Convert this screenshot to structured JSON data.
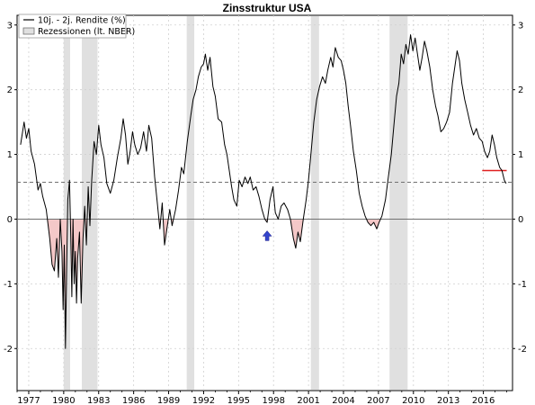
{
  "chart_data": {
    "type": "line",
    "title": "Zinsstruktur USA",
    "xlabel": "",
    "ylabel": "",
    "xlim": [
      1976.0,
      2018.5
    ],
    "ylim": [
      -2.65,
      3.15
    ],
    "x_ticks": [
      1977,
      1980,
      1983,
      1986,
      1989,
      1992,
      1995,
      1998,
      2001,
      2004,
      2007,
      2010,
      2013,
      2016
    ],
    "y_ticks": [
      -2,
      -1,
      0,
      1,
      2,
      3
    ],
    "grid": true,
    "axes_right_labels": true,
    "legend_position": "top-left",
    "legend": [
      {
        "label": "10j. - 2j. Rendite (%)",
        "kind": "line",
        "color": "#000000"
      },
      {
        "label": "Rezessionen (lt. NBER)",
        "kind": "box",
        "color": "#e0e0e0"
      }
    ],
    "series": [
      {
        "name": "10j. - 2j. Rendite (%)",
        "color": "#000000",
        "points": [
          [
            1976.3,
            1.15
          ],
          [
            1976.6,
            1.5
          ],
          [
            1976.8,
            1.25
          ],
          [
            1977.0,
            1.4
          ],
          [
            1977.2,
            1.05
          ],
          [
            1977.5,
            0.85
          ],
          [
            1977.8,
            0.45
          ],
          [
            1978.0,
            0.55
          ],
          [
            1978.2,
            0.35
          ],
          [
            1978.5,
            0.15
          ],
          [
            1978.8,
            -0.3
          ],
          [
            1979.0,
            -0.7
          ],
          [
            1979.2,
            -0.8
          ],
          [
            1979.4,
            -0.3
          ],
          [
            1979.55,
            -0.9
          ],
          [
            1979.7,
            0.0
          ],
          [
            1979.85,
            -0.5
          ],
          [
            1979.95,
            -1.4
          ],
          [
            1980.05,
            -0.4
          ],
          [
            1980.15,
            -2.0
          ],
          [
            1980.25,
            -0.8
          ],
          [
            1980.35,
            0.3
          ],
          [
            1980.5,
            0.6
          ],
          [
            1980.6,
            -0.2
          ],
          [
            1980.7,
            -1.2
          ],
          [
            1980.8,
            0.0
          ],
          [
            1980.9,
            -1.0
          ],
          [
            1981.0,
            -0.5
          ],
          [
            1981.1,
            -1.3
          ],
          [
            1981.2,
            -0.6
          ],
          [
            1981.35,
            -0.2
          ],
          [
            1981.5,
            -1.3
          ],
          [
            1981.65,
            -0.3
          ],
          [
            1981.8,
            0.2
          ],
          [
            1981.95,
            -0.4
          ],
          [
            1982.1,
            0.5
          ],
          [
            1982.25,
            -0.1
          ],
          [
            1982.4,
            0.6
          ],
          [
            1982.6,
            1.2
          ],
          [
            1982.8,
            1.0
          ],
          [
            1983.0,
            1.45
          ],
          [
            1983.2,
            1.15
          ],
          [
            1983.45,
            0.95
          ],
          [
            1983.7,
            0.55
          ],
          [
            1984.0,
            0.4
          ],
          [
            1984.3,
            0.6
          ],
          [
            1984.6,
            0.95
          ],
          [
            1984.9,
            1.25
          ],
          [
            1985.1,
            1.55
          ],
          [
            1985.3,
            1.3
          ],
          [
            1985.5,
            0.85
          ],
          [
            1985.7,
            1.05
          ],
          [
            1985.9,
            1.35
          ],
          [
            1986.1,
            1.15
          ],
          [
            1986.35,
            1.0
          ],
          [
            1986.6,
            1.1
          ],
          [
            1986.85,
            1.35
          ],
          [
            1987.1,
            1.05
          ],
          [
            1987.3,
            1.45
          ],
          [
            1987.55,
            1.25
          ],
          [
            1987.8,
            0.65
          ],
          [
            1988.0,
            0.3
          ],
          [
            1988.25,
            -0.15
          ],
          [
            1988.45,
            0.25
          ],
          [
            1988.65,
            -0.4
          ],
          [
            1988.85,
            -0.15
          ],
          [
            1989.1,
            0.15
          ],
          [
            1989.3,
            -0.1
          ],
          [
            1989.6,
            0.15
          ],
          [
            1989.85,
            0.45
          ],
          [
            1990.1,
            0.8
          ],
          [
            1990.3,
            0.7
          ],
          [
            1990.6,
            1.2
          ],
          [
            1990.9,
            1.6
          ],
          [
            1991.1,
            1.85
          ],
          [
            1991.35,
            2.0
          ],
          [
            1991.55,
            2.2
          ],
          [
            1991.8,
            2.35
          ],
          [
            1992.0,
            2.4
          ],
          [
            1992.15,
            2.55
          ],
          [
            1992.35,
            2.3
          ],
          [
            1992.55,
            2.5
          ],
          [
            1992.8,
            2.05
          ],
          [
            1993.0,
            1.9
          ],
          [
            1993.25,
            1.55
          ],
          [
            1993.55,
            1.5
          ],
          [
            1993.8,
            1.15
          ],
          [
            1994.0,
            1.0
          ],
          [
            1994.2,
            0.75
          ],
          [
            1994.4,
            0.5
          ],
          [
            1994.6,
            0.3
          ],
          [
            1994.85,
            0.2
          ],
          [
            1995.05,
            0.6
          ],
          [
            1995.3,
            0.5
          ],
          [
            1995.55,
            0.65
          ],
          [
            1995.8,
            0.55
          ],
          [
            1996.0,
            0.65
          ],
          [
            1996.25,
            0.45
          ],
          [
            1996.5,
            0.5
          ],
          [
            1996.75,
            0.35
          ],
          [
            1997.0,
            0.15
          ],
          [
            1997.25,
            0.0
          ],
          [
            1997.45,
            -0.05
          ],
          [
            1997.7,
            0.3
          ],
          [
            1997.95,
            0.5
          ],
          [
            1998.15,
            0.1
          ],
          [
            1998.4,
            0.0
          ],
          [
            1998.65,
            0.2
          ],
          [
            1998.9,
            0.25
          ],
          [
            1999.2,
            0.15
          ],
          [
            1999.45,
            0.0
          ],
          [
            1999.7,
            -0.3
          ],
          [
            1999.9,
            -0.45
          ],
          [
            2000.1,
            -0.2
          ],
          [
            2000.3,
            -0.35
          ],
          [
            2000.55,
            0.0
          ],
          [
            2000.8,
            0.3
          ],
          [
            2001.0,
            0.6
          ],
          [
            2001.25,
            1.1
          ],
          [
            2001.45,
            1.5
          ],
          [
            2001.7,
            1.85
          ],
          [
            2001.95,
            2.05
          ],
          [
            2002.2,
            2.2
          ],
          [
            2002.45,
            2.1
          ],
          [
            2002.65,
            2.3
          ],
          [
            2002.9,
            2.5
          ],
          [
            2003.1,
            2.35
          ],
          [
            2003.3,
            2.65
          ],
          [
            2003.55,
            2.5
          ],
          [
            2003.8,
            2.45
          ],
          [
            2004.0,
            2.3
          ],
          [
            2004.2,
            2.1
          ],
          [
            2004.4,
            1.75
          ],
          [
            2004.6,
            1.45
          ],
          [
            2004.85,
            1.05
          ],
          [
            2005.1,
            0.75
          ],
          [
            2005.35,
            0.4
          ],
          [
            2005.6,
            0.2
          ],
          [
            2005.85,
            0.05
          ],
          [
            2006.1,
            -0.05
          ],
          [
            2006.35,
            -0.1
          ],
          [
            2006.6,
            -0.05
          ],
          [
            2006.85,
            -0.15
          ],
          [
            2007.05,
            -0.05
          ],
          [
            2007.3,
            0.05
          ],
          [
            2007.6,
            0.3
          ],
          [
            2007.85,
            0.65
          ],
          [
            2008.1,
            1.0
          ],
          [
            2008.35,
            1.5
          ],
          [
            2008.55,
            1.9
          ],
          [
            2008.75,
            2.1
          ],
          [
            2008.95,
            2.55
          ],
          [
            2009.15,
            2.4
          ],
          [
            2009.35,
            2.7
          ],
          [
            2009.55,
            2.55
          ],
          [
            2009.75,
            2.85
          ],
          [
            2009.95,
            2.6
          ],
          [
            2010.15,
            2.8
          ],
          [
            2010.35,
            2.55
          ],
          [
            2010.55,
            2.3
          ],
          [
            2010.75,
            2.5
          ],
          [
            2010.95,
            2.75
          ],
          [
            2011.15,
            2.6
          ],
          [
            2011.4,
            2.35
          ],
          [
            2011.65,
            2.0
          ],
          [
            2011.9,
            1.75
          ],
          [
            2012.1,
            1.6
          ],
          [
            2012.35,
            1.35
          ],
          [
            2012.6,
            1.4
          ],
          [
            2012.85,
            1.5
          ],
          [
            2013.1,
            1.65
          ],
          [
            2013.35,
            2.1
          ],
          [
            2013.55,
            2.35
          ],
          [
            2013.75,
            2.6
          ],
          [
            2013.95,
            2.45
          ],
          [
            2014.15,
            2.1
          ],
          [
            2014.4,
            1.85
          ],
          [
            2014.65,
            1.65
          ],
          [
            2014.9,
            1.45
          ],
          [
            2015.15,
            1.3
          ],
          [
            2015.4,
            1.4
          ],
          [
            2015.65,
            1.25
          ],
          [
            2015.9,
            1.2
          ],
          [
            2016.1,
            1.05
          ],
          [
            2016.35,
            0.95
          ],
          [
            2016.55,
            1.05
          ],
          [
            2016.75,
            1.3
          ],
          [
            2016.95,
            1.15
          ],
          [
            2017.15,
            0.95
          ],
          [
            2017.4,
            0.8
          ],
          [
            2017.6,
            0.75
          ],
          [
            2017.8,
            0.6
          ],
          [
            2017.95,
            0.55
          ]
        ]
      }
    ],
    "recessions": [
      [
        1980.0,
        1980.55
      ],
      [
        1981.55,
        1982.9
      ],
      [
        1990.55,
        1991.2
      ],
      [
        2001.2,
        2001.9
      ],
      [
        2007.95,
        2009.5
      ]
    ],
    "reference_lines": [
      {
        "y": 0,
        "style": "solid",
        "color": "#707070"
      },
      {
        "y": 0.57,
        "style": "dashed",
        "color": "#707070"
      },
      {
        "y": 0.75,
        "x_range": [
          2015.9,
          2018.0
        ],
        "style": "solid",
        "color": "#e02020"
      }
    ],
    "annotations": [
      {
        "type": "arrow-up",
        "x": 1997.45,
        "y": -0.18,
        "color": "#3344cc"
      }
    ],
    "negative_fill_color": "#f4c8c8"
  }
}
